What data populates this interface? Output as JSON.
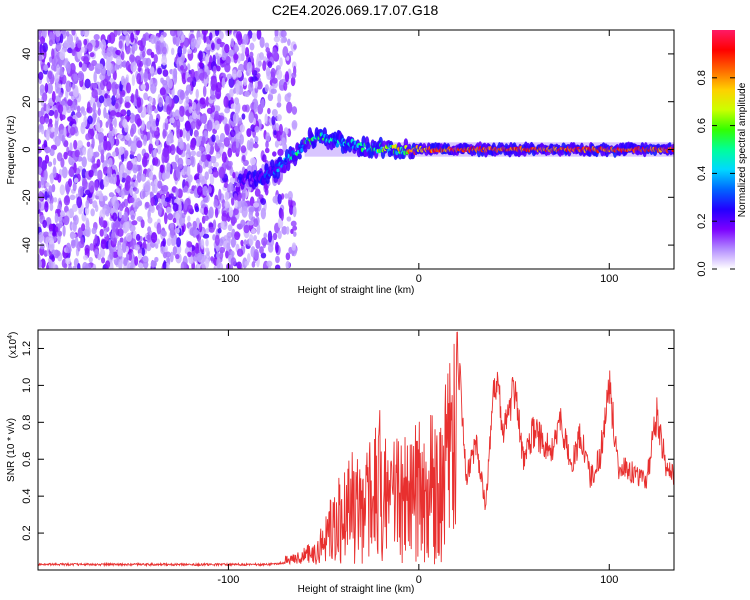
{
  "title": "C2E4.2026.069.17.07.G18",
  "chart_data": [
    {
      "type": "heatmap",
      "xlabel": "Height of straight line (km)",
      "ylabel": "Frequency (Hz)",
      "xlim": [
        -200,
        134
      ],
      "ylim": [
        -50,
        50
      ],
      "xticks": [
        -100,
        0,
        100
      ],
      "yticks": [
        -40,
        -20,
        0,
        20,
        40
      ],
      "noise_region_x": [
        -200,
        -65
      ],
      "signal_track": {
        "x": [
          -95,
          -85,
          -75,
          -65,
          -58,
          -50,
          -42,
          -35,
          -28,
          -20,
          -10,
          0,
          10,
          20,
          60,
          100,
          134
        ],
        "y": [
          -14,
          -12,
          -8,
          -2,
          4,
          5,
          3,
          2,
          1,
          0.5,
          0,
          0,
          0,
          0,
          0,
          0,
          0
        ],
        "amplitude": [
          0.15,
          0.25,
          0.35,
          0.5,
          0.55,
          0.55,
          0.5,
          0.5,
          0.55,
          0.6,
          0.75,
          0.85,
          0.9,
          0.9,
          0.9,
          0.9,
          0.9
        ]
      },
      "colorbar": {
        "label": "Normalized spectral amplitude",
        "ticks": [
          0.0,
          0.2,
          0.4,
          0.6,
          0.8
        ],
        "range": [
          0,
          1
        ],
        "colors": [
          "#ffffff",
          "#b38cff",
          "#7b00ff",
          "#2200ff",
          "#0066ff",
          "#00d9ff",
          "#00ff99",
          "#33ff00",
          "#ccff00",
          "#ffd000",
          "#ff6600",
          "#ff0000",
          "#ff1a66"
        ]
      }
    },
    {
      "type": "line",
      "xlabel": "Height of straight line (km)",
      "ylabel": "SNR (10 * v/v)",
      "y_multiplier_label": "(x10",
      "y_multiplier_exp": "4",
      "y_multiplier_close": ")",
      "xlim": [
        -200,
        134
      ],
      "ylim": [
        0,
        1.3
      ],
      "xticks": [
        -100,
        0,
        100
      ],
      "yticks": [
        0.2,
        0.4,
        0.6,
        0.8,
        1.0,
        1.2
      ],
      "line_color": "#e8302f",
      "series": [
        {
          "x": [
            -200,
            -150,
            -100,
            -80,
            -70,
            -65,
            -60,
            -55,
            -50,
            -45,
            -40,
            -35,
            -30,
            -25,
            -20,
            -15,
            -10,
            -5,
            0,
            5,
            10,
            15,
            20,
            25,
            30,
            35,
            40,
            45,
            50,
            55,
            60,
            65,
            70,
            75,
            80,
            85,
            90,
            95,
            100,
            105,
            110,
            115,
            120,
            125,
            130,
            134
          ],
          "y": [
            0.03,
            0.03,
            0.03,
            0.03,
            0.04,
            0.05,
            0.08,
            0.12,
            0.2,
            0.35,
            0.45,
            0.55,
            0.5,
            0.6,
            0.75,
            0.55,
            0.65,
            0.6,
            0.7,
            0.8,
            0.65,
            0.9,
            1.25,
            0.5,
            0.7,
            0.35,
            1.05,
            0.75,
            1.0,
            0.6,
            0.75,
            0.7,
            0.65,
            0.8,
            0.55,
            0.75,
            0.5,
            0.6,
            1.0,
            0.55,
            0.55,
            0.5,
            0.5,
            0.85,
            0.55,
            0.5
          ]
        }
      ]
    }
  ]
}
